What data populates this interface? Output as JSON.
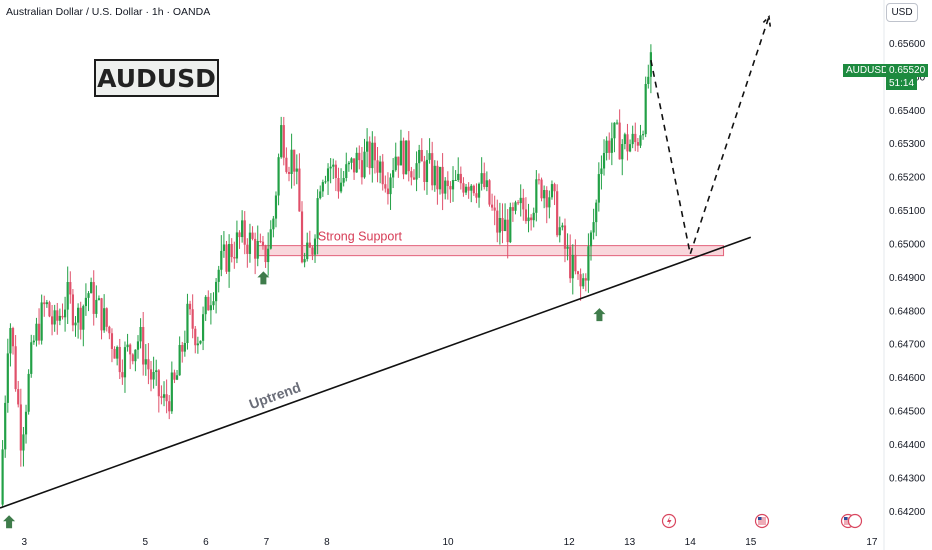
{
  "header": {
    "title": "Australian Dollar / U.S. Dollar · 1h · OANDA"
  },
  "symbol_box": "AUDUSD",
  "currency_button": "USD",
  "price_tag": {
    "symbol": "AUDUSD",
    "price": "0.65520",
    "countdown": "51:14"
  },
  "annotations": {
    "support_label": "Strong Support",
    "trend_label": "Uptrend"
  },
  "colors": {
    "up": "#22a046",
    "down": "#e0506a",
    "support_fill": "#f7c6cd",
    "support_stroke": "#e2627a",
    "arrow": "#3f7c4b",
    "trendline": "#111111",
    "price_tag_bg": "#1d8a3f"
  },
  "icons": [
    "flash-event-icon",
    "us-flag-event-icon",
    "us-flag-event-icon"
  ],
  "chart_data": {
    "type": "candlestick",
    "title": "Australian Dollar / U.S. Dollar · 1h · OANDA",
    "ylim": [
      0.6415,
      0.6573
    ],
    "xlim": [
      2.6,
      17.2
    ],
    "x_ticks": [
      "3",
      "5",
      "6",
      "7",
      "8",
      "10",
      "12",
      "13",
      "14",
      "15",
      "17"
    ],
    "x_tick_values": [
      3,
      5,
      6,
      7,
      8,
      10,
      12,
      13,
      14,
      15,
      17
    ],
    "y_ticks": [
      "0.64200",
      "0.64300",
      "0.64400",
      "0.64500",
      "0.64600",
      "0.64700",
      "0.64800",
      "0.64900",
      "0.65000",
      "0.65100",
      "0.65200",
      "0.65300",
      "0.65400",
      "0.65500",
      "0.65600"
    ],
    "y_tick_values": [
      0.642,
      0.643,
      0.644,
      0.645,
      0.646,
      0.647,
      0.648,
      0.649,
      0.65,
      0.651,
      0.652,
      0.653,
      0.654,
      0.655,
      0.656
    ],
    "series_close_anchors": [
      [
        2.6,
        0.6422
      ],
      [
        2.75,
        0.648
      ],
      [
        2.95,
        0.6442
      ],
      [
        3.15,
        0.647
      ],
      [
        3.35,
        0.6482
      ],
      [
        3.5,
        0.6475
      ],
      [
        3.7,
        0.6484
      ],
      [
        3.9,
        0.6478
      ],
      [
        4.05,
        0.6486
      ],
      [
        4.3,
        0.6478
      ],
      [
        4.6,
        0.6465
      ],
      [
        4.9,
        0.6472
      ],
      [
        5.1,
        0.646
      ],
      [
        5.3,
        0.6452
      ],
      [
        5.5,
        0.6458
      ],
      [
        5.7,
        0.6478
      ],
      [
        5.9,
        0.6472
      ],
      [
        6.05,
        0.6484
      ],
      [
        6.2,
        0.6492
      ],
      [
        6.4,
        0.6498
      ],
      [
        6.6,
        0.6502
      ],
      [
        6.8,
        0.65
      ],
      [
        6.95,
        0.6495
      ],
      [
        7.1,
        0.6505
      ],
      [
        7.25,
        0.6535
      ],
      [
        7.35,
        0.6525
      ],
      [
        7.45,
        0.6527
      ],
      [
        7.55,
        0.6508
      ],
      [
        7.6,
        0.6493
      ],
      [
        7.75,
        0.6498
      ],
      [
        7.9,
        0.6522
      ],
      [
        8.05,
        0.6524
      ],
      [
        8.2,
        0.6518
      ],
      [
        8.5,
        0.6525
      ],
      [
        8.8,
        0.6526
      ],
      [
        9.0,
        0.652
      ],
      [
        9.15,
        0.6528
      ],
      [
        9.4,
        0.6524
      ],
      [
        9.7,
        0.6522
      ],
      [
        10.0,
        0.6515
      ],
      [
        10.3,
        0.652
      ],
      [
        10.6,
        0.6517
      ],
      [
        10.8,
        0.6505
      ],
      [
        11.0,
        0.6505
      ],
      [
        11.2,
        0.651
      ],
      [
        11.4,
        0.6513
      ],
      [
        11.55,
        0.6518
      ],
      [
        11.7,
        0.6515
      ],
      [
        11.9,
        0.65
      ],
      [
        12.0,
        0.6495
      ],
      [
        12.1,
        0.649
      ],
      [
        12.2,
        0.6486
      ],
      [
        12.35,
        0.65
      ],
      [
        12.45,
        0.6512
      ],
      [
        12.5,
        0.6526
      ],
      [
        12.7,
        0.6532
      ],
      [
        12.9,
        0.653
      ],
      [
        13.1,
        0.653
      ],
      [
        13.25,
        0.654
      ],
      [
        13.3,
        0.655
      ],
      [
        13.35,
        0.6552
      ]
    ],
    "uptrend_line": {
      "from": [
        2.6,
        0.6421
      ],
      "to": [
        15.0,
        0.6502
      ]
    },
    "support_zone": {
      "x_range": [
        6.85,
        14.55
      ],
      "y_range": [
        0.64965,
        0.64995
      ],
      "label": "Strong Support"
    },
    "projection_path": [
      [
        13.35,
        0.6555
      ],
      [
        14.0,
        0.6497
      ],
      [
        15.3,
        0.6568
      ]
    ],
    "up_arrows": [
      [
        2.75,
        0.642
      ],
      [
        6.95,
        0.6493
      ],
      [
        12.5,
        0.6482
      ]
    ],
    "last_price": 0.6552
  }
}
